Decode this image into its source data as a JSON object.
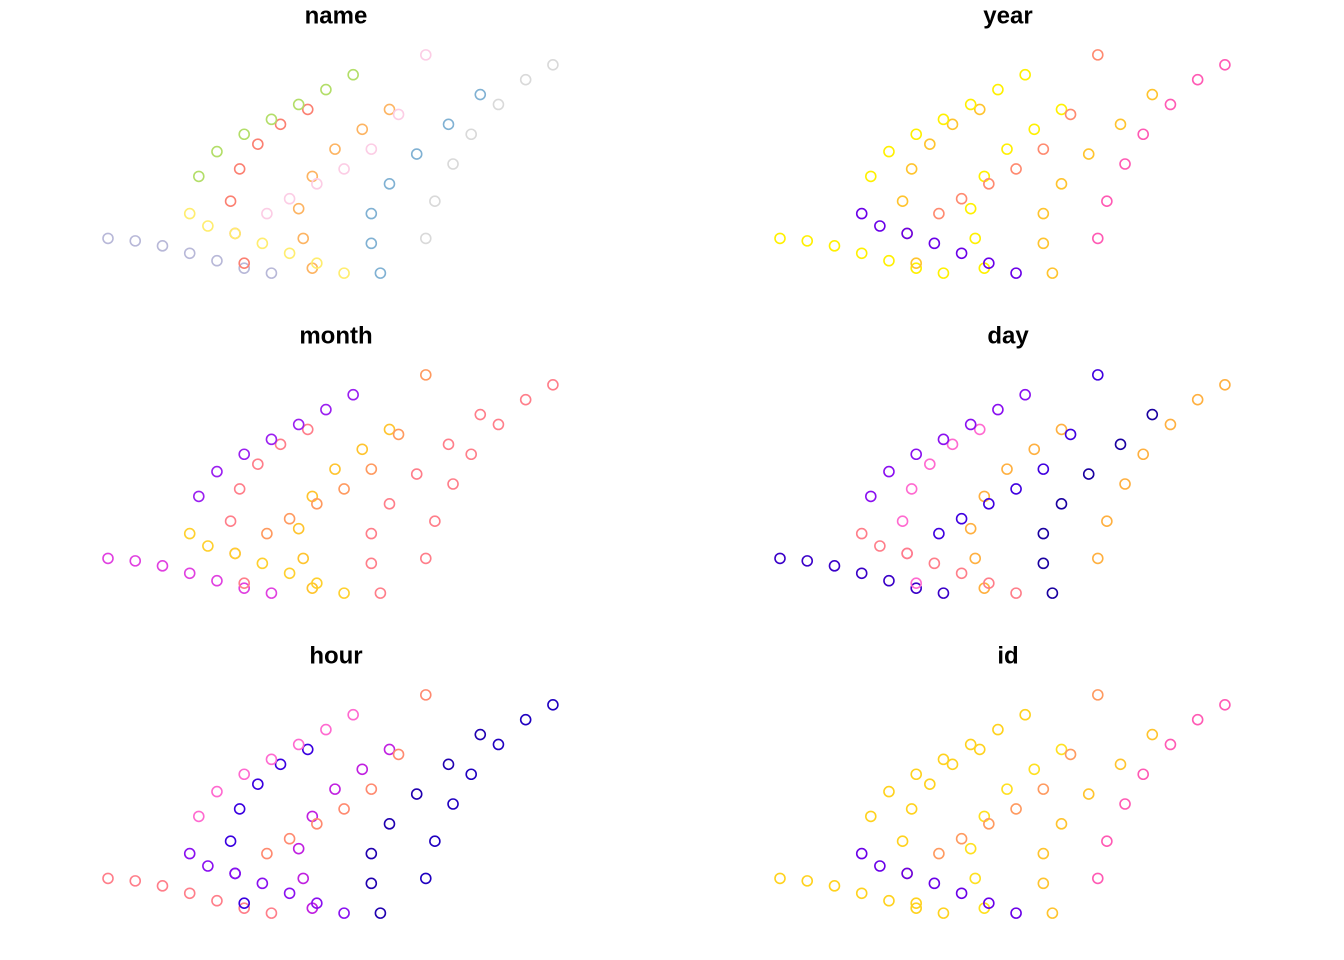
{
  "chart_data": [
    {
      "type": "scatter",
      "title": "name",
      "xlim": [
        0,
        100
      ],
      "ylim": [
        0,
        100
      ],
      "series": [
        {
          "color": "#b8b8d8",
          "x": [
            0,
            6,
            12,
            18,
            24,
            30,
            36
          ],
          "values": [
            20,
            19,
            17,
            14,
            11,
            8,
            6
          ]
        },
        {
          "color": "#fb8072",
          "x": [
            30,
            28,
            27,
            29,
            33,
            38,
            44
          ],
          "values": [
            10,
            22,
            35,
            48,
            58,
            66,
            72
          ]
        },
        {
          "color": "#fdb462",
          "x": [
            45,
            43,
            42,
            45,
            50,
            56,
            62
          ],
          "values": [
            8,
            20,
            32,
            45,
            56,
            64,
            72
          ]
        },
        {
          "color": "#80b1d3",
          "x": [
            60,
            58,
            58,
            62,
            68,
            75,
            82
          ],
          "values": [
            6,
            18,
            30,
            42,
            54,
            66,
            78
          ]
        },
        {
          "color": "#b3de69",
          "x": [
            20,
            24,
            30,
            36,
            42,
            48,
            54
          ],
          "values": [
            45,
            55,
            62,
            68,
            74,
            80,
            86
          ]
        },
        {
          "color": "#d9d9d9",
          "x": [
            70,
            72,
            76,
            80,
            86,
            92,
            98
          ],
          "values": [
            20,
            35,
            50,
            62,
            74,
            84,
            90
          ]
        },
        {
          "color": "#fccde5",
          "x": [
            35,
            40,
            46,
            52,
            58,
            64,
            70
          ],
          "values": [
            30,
            36,
            42,
            48,
            56,
            70,
            94
          ]
        },
        {
          "color": "#ffed6f",
          "x": [
            18,
            22,
            28,
            34,
            40,
            46,
            52
          ],
          "values": [
            30,
            25,
            22,
            18,
            14,
            10,
            6
          ]
        }
      ]
    },
    {
      "type": "scatter",
      "title": "year",
      "xlim": [
        0,
        100
      ],
      "ylim": [
        0,
        100
      ],
      "series": [
        {
          "color": "#fff000",
          "x": [
            0,
            6,
            12,
            18,
            24,
            30,
            36
          ],
          "values": [
            20,
            19,
            17,
            14,
            11,
            8,
            6
          ]
        },
        {
          "color": "#ffc42e",
          "x": [
            30,
            28,
            27,
            29,
            33,
            38,
            44
          ],
          "values": [
            10,
            22,
            35,
            48,
            58,
            66,
            72
          ]
        },
        {
          "color": "#fff000",
          "x": [
            45,
            43,
            42,
            45,
            50,
            56,
            62
          ],
          "values": [
            8,
            20,
            32,
            45,
            56,
            64,
            72
          ]
        },
        {
          "color": "#ffc42e",
          "x": [
            60,
            58,
            58,
            62,
            68,
            75,
            82
          ],
          "values": [
            6,
            18,
            30,
            42,
            54,
            66,
            78
          ]
        },
        {
          "color": "#fff000",
          "x": [
            20,
            24,
            30,
            36,
            42,
            48,
            54
          ],
          "values": [
            45,
            55,
            62,
            68,
            74,
            80,
            86
          ]
        },
        {
          "color": "#ff5ab4",
          "x": [
            70,
            72,
            76,
            80,
            86,
            92,
            98
          ],
          "values": [
            20,
            35,
            50,
            62,
            74,
            84,
            90
          ]
        },
        {
          "color": "#ff8a70",
          "x": [
            35,
            40,
            46,
            52,
            58,
            64,
            70
          ],
          "values": [
            30,
            36,
            42,
            48,
            56,
            70,
            94
          ]
        },
        {
          "color": "#6a00e8",
          "x": [
            18,
            22,
            28,
            34,
            40,
            46,
            52
          ],
          "values": [
            30,
            25,
            22,
            18,
            14,
            10,
            6
          ]
        }
      ]
    },
    {
      "type": "scatter",
      "title": "month",
      "xlim": [
        0,
        100
      ],
      "ylim": [
        0,
        100
      ],
      "series": [
        {
          "color": "#e040e0",
          "x": [
            0,
            6,
            12,
            18,
            24,
            30,
            36
          ],
          "values": [
            20,
            19,
            17,
            14,
            11,
            8,
            6
          ]
        },
        {
          "color": "#ff7e8a",
          "x": [
            30,
            28,
            27,
            29,
            33,
            38,
            44
          ],
          "values": [
            10,
            22,
            35,
            48,
            58,
            66,
            72
          ]
        },
        {
          "color": "#ffc42e",
          "x": [
            45,
            43,
            42,
            45,
            50,
            56,
            62
          ],
          "values": [
            8,
            20,
            32,
            45,
            56,
            64,
            72
          ]
        },
        {
          "color": "#ff7e8a",
          "x": [
            60,
            58,
            58,
            62,
            68,
            75,
            82
          ],
          "values": [
            6,
            18,
            30,
            42,
            54,
            66,
            78
          ]
        },
        {
          "color": "#9b20f0",
          "x": [
            20,
            24,
            30,
            36,
            42,
            48,
            54
          ],
          "values": [
            45,
            55,
            62,
            68,
            74,
            80,
            86
          ]
        },
        {
          "color": "#ff7e8a",
          "x": [
            70,
            72,
            76,
            80,
            86,
            92,
            98
          ],
          "values": [
            20,
            35,
            50,
            62,
            74,
            84,
            90
          ]
        },
        {
          "color": "#ff9a60",
          "x": [
            35,
            40,
            46,
            52,
            58,
            64,
            70
          ],
          "values": [
            30,
            36,
            42,
            48,
            56,
            70,
            94
          ]
        },
        {
          "color": "#ffd02e",
          "x": [
            18,
            22,
            28,
            34,
            40,
            46,
            52
          ],
          "values": [
            30,
            25,
            22,
            18,
            14,
            10,
            6
          ]
        }
      ]
    },
    {
      "type": "scatter",
      "title": "day",
      "xlim": [
        0,
        100
      ],
      "ylim": [
        0,
        100
      ],
      "series": [
        {
          "color": "#3a00c8",
          "x": [
            0,
            6,
            12,
            18,
            24,
            30,
            36
          ],
          "values": [
            20,
            19,
            17,
            14,
            11,
            8,
            6
          ]
        },
        {
          "color": "#ff6ad0",
          "x": [
            30,
            28,
            27,
            29,
            33,
            38,
            44
          ],
          "values": [
            10,
            22,
            35,
            48,
            58,
            66,
            72
          ]
        },
        {
          "color": "#ffb040",
          "x": [
            45,
            43,
            42,
            45,
            50,
            56,
            62
          ],
          "values": [
            8,
            20,
            32,
            45,
            56,
            64,
            72
          ]
        },
        {
          "color": "#1a00a0",
          "x": [
            60,
            58,
            58,
            62,
            68,
            75,
            82
          ],
          "values": [
            6,
            18,
            30,
            42,
            54,
            66,
            78
          ]
        },
        {
          "color": "#8a10f0",
          "x": [
            20,
            24,
            30,
            36,
            42,
            48,
            54
          ],
          "values": [
            45,
            55,
            62,
            68,
            74,
            80,
            86
          ]
        },
        {
          "color": "#ffb040",
          "x": [
            70,
            72,
            76,
            80,
            86,
            92,
            98
          ],
          "values": [
            20,
            35,
            50,
            62,
            74,
            84,
            90
          ]
        },
        {
          "color": "#4000e0",
          "x": [
            35,
            40,
            46,
            52,
            58,
            64,
            70
          ],
          "values": [
            30,
            36,
            42,
            48,
            56,
            70,
            94
          ]
        },
        {
          "color": "#ff7e8a",
          "x": [
            18,
            22,
            28,
            34,
            40,
            46,
            52
          ],
          "values": [
            30,
            25,
            22,
            18,
            14,
            10,
            6
          ]
        }
      ]
    },
    {
      "type": "scatter",
      "title": "hour",
      "xlim": [
        0,
        100
      ],
      "ylim": [
        0,
        100
      ],
      "series": [
        {
          "color": "#ff7e8a",
          "x": [
            0,
            6,
            12,
            18,
            24,
            30,
            36
          ],
          "values": [
            20,
            19,
            17,
            14,
            11,
            8,
            6
          ]
        },
        {
          "color": "#3a00e0",
          "x": [
            30,
            28,
            27,
            29,
            33,
            38,
            44
          ],
          "values": [
            10,
            22,
            35,
            48,
            58,
            66,
            72
          ]
        },
        {
          "color": "#c020e0",
          "x": [
            45,
            43,
            42,
            45,
            50,
            56,
            62
          ],
          "values": [
            8,
            20,
            32,
            45,
            56,
            64,
            72
          ]
        },
        {
          "color": "#2000b0",
          "x": [
            60,
            58,
            58,
            62,
            68,
            75,
            82
          ],
          "values": [
            6,
            18,
            30,
            42,
            54,
            66,
            78
          ]
        },
        {
          "color": "#ff6ad0",
          "x": [
            20,
            24,
            30,
            36,
            42,
            48,
            54
          ],
          "values": [
            45,
            55,
            62,
            68,
            74,
            80,
            86
          ]
        },
        {
          "color": "#2000c0",
          "x": [
            70,
            72,
            76,
            80,
            86,
            92,
            98
          ],
          "values": [
            20,
            35,
            50,
            62,
            74,
            84,
            90
          ]
        },
        {
          "color": "#ff8a70",
          "x": [
            35,
            40,
            46,
            52,
            58,
            64,
            70
          ],
          "values": [
            30,
            36,
            42,
            48,
            56,
            70,
            94
          ]
        },
        {
          "color": "#8a10f0",
          "x": [
            18,
            22,
            28,
            34,
            40,
            46,
            52
          ],
          "values": [
            30,
            25,
            22,
            18,
            14,
            10,
            6
          ]
        }
      ]
    },
    {
      "type": "scatter",
      "title": "id",
      "xlim": [
        0,
        100
      ],
      "ylim": [
        0,
        100
      ],
      "series": [
        {
          "color": "#ffd21e",
          "x": [
            0,
            6,
            12,
            18,
            24,
            30,
            36
          ],
          "values": [
            20,
            19,
            17,
            14,
            11,
            8,
            6
          ]
        },
        {
          "color": "#ffd21e",
          "x": [
            30,
            28,
            27,
            29,
            33,
            38,
            44
          ],
          "values": [
            10,
            22,
            35,
            48,
            58,
            66,
            72
          ]
        },
        {
          "color": "#ffe020",
          "x": [
            45,
            43,
            42,
            45,
            50,
            56,
            62
          ],
          "values": [
            8,
            20,
            32,
            45,
            56,
            64,
            72
          ]
        },
        {
          "color": "#ffc42e",
          "x": [
            60,
            58,
            58,
            62,
            68,
            75,
            82
          ],
          "values": [
            6,
            18,
            30,
            42,
            54,
            66,
            78
          ]
        },
        {
          "color": "#ffd21e",
          "x": [
            20,
            24,
            30,
            36,
            42,
            48,
            54
          ],
          "values": [
            45,
            55,
            62,
            68,
            74,
            80,
            86
          ]
        },
        {
          "color": "#ff5ab4",
          "x": [
            70,
            72,
            76,
            80,
            86,
            92,
            98
          ],
          "values": [
            20,
            35,
            50,
            62,
            74,
            84,
            90
          ]
        },
        {
          "color": "#ff9a60",
          "x": [
            35,
            40,
            46,
            52,
            58,
            64,
            70
          ],
          "values": [
            30,
            36,
            42,
            48,
            56,
            70,
            94
          ]
        },
        {
          "color": "#6a00e8",
          "x": [
            18,
            22,
            28,
            34,
            40,
            46,
            52
          ],
          "values": [
            30,
            25,
            22,
            18,
            14,
            10,
            6
          ]
        }
      ]
    }
  ]
}
